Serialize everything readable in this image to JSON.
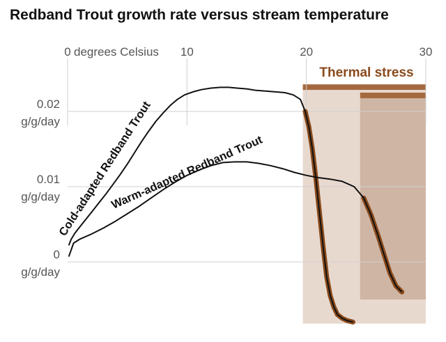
{
  "chart_data": {
    "type": "line",
    "title": "Redband Trout growth rate versus stream temperature",
    "x_unit": "degrees Celsius",
    "y_unit": "g/g/day",
    "x_ticks": [
      0,
      10,
      20,
      30
    ],
    "y_ticks": [
      0,
      0.01,
      0.02
    ],
    "y_tick_labels": [
      "0",
      "0.01",
      "0.02"
    ],
    "xlim": [
      0,
      30
    ],
    "ylim": [
      -0.008,
      0.025
    ],
    "grid": true,
    "annotation": "Thermal stress",
    "series": [
      {
        "name": "Cold-adapted Redband Trout",
        "x": [
          0.1,
          0.3,
          0.6,
          1.0,
          1.5,
          2.0,
          2.6,
          3.2,
          3.8,
          4.4,
          5.0,
          5.6,
          6.2,
          6.8,
          7.4,
          8.0,
          8.6,
          9.2,
          9.8,
          10.5,
          11.2,
          12.0,
          12.8,
          13.5,
          14.2,
          15.0,
          15.8,
          16.6,
          17.4,
          18.2,
          18.9,
          19.5,
          19.9,
          20.2,
          20.5,
          20.8,
          21.1,
          21.4,
          21.7,
          22.0,
          22.3,
          22.6,
          23.0,
          23.4,
          23.9
        ],
        "y": [
          0.0022,
          0.003,
          0.0038,
          0.0046,
          0.0056,
          0.0066,
          0.0078,
          0.009,
          0.0103,
          0.0116,
          0.013,
          0.0145,
          0.016,
          0.0174,
          0.0187,
          0.0198,
          0.0208,
          0.0216,
          0.0222,
          0.0226,
          0.0229,
          0.0231,
          0.0232,
          0.0232,
          0.0231,
          0.023,
          0.0228,
          0.0227,
          0.0226,
          0.0225,
          0.0222,
          0.0216,
          0.02,
          0.018,
          0.015,
          0.011,
          0.0065,
          0.002,
          -0.002,
          -0.0045,
          -0.006,
          -0.007,
          -0.0075,
          -0.0078,
          -0.008
        ]
      },
      {
        "name": "Warm-adapted Redband Trout",
        "x": [
          0.1,
          0.5,
          1.0,
          2.0,
          3.0,
          4.0,
          5.0,
          6.0,
          7.0,
          8.0,
          9.0,
          10.0,
          11.0,
          12.0,
          13.0,
          14.0,
          15.0,
          16.0,
          17.0,
          18.0,
          19.0,
          20.0,
          21.0,
          22.0,
          23.0,
          24.0,
          24.8,
          25.4,
          26.0,
          26.5,
          27.0,
          27.5,
          28.0
        ],
        "y": [
          0.0007,
          0.0025,
          0.003,
          0.0037,
          0.0045,
          0.0054,
          0.0064,
          0.0074,
          0.0085,
          0.0096,
          0.0106,
          0.0115,
          0.0122,
          0.0128,
          0.0132,
          0.0133,
          0.0133,
          0.0131,
          0.0128,
          0.0124,
          0.0119,
          0.0115,
          0.0112,
          0.011,
          0.0107,
          0.01,
          0.0085,
          0.0063,
          0.0035,
          0.001,
          -0.0015,
          -0.0032,
          -0.004
        ]
      }
    ],
    "stress_zones": [
      {
        "x_start": 19.7,
        "x_end": 30,
        "y_top": 0.0236,
        "y_bottom": -0.0082
      },
      {
        "x_start": 24.5,
        "x_end": 30,
        "y_top": 0.0225,
        "y_bottom": -0.005
      }
    ],
    "stress_overlay": [
      {
        "series": 0,
        "x_from": 19.7
      },
      {
        "series": 1,
        "x_from": 24.4
      }
    ],
    "colors": {
      "curve": "#111111",
      "stress_line": "#8a4a1c",
      "stress_bar": "#a46a3f",
      "zone_light": "#e8d9cf",
      "zone_dark": "#cfb5a4",
      "grid": "#cfcfcf",
      "tick_text": "#555555"
    }
  }
}
